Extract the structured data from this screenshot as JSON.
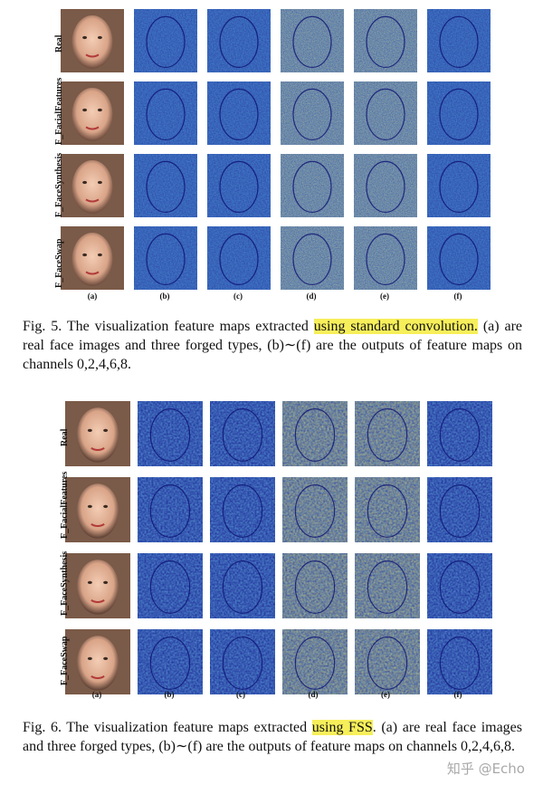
{
  "figures": [
    {
      "id": "fig5",
      "row_labels": [
        "Real",
        "F_FacialFeatures",
        "F_FaceSynthesis",
        "F_FaceSwap"
      ],
      "col_labels": [
        "(a)",
        "(b)",
        "(c)",
        "(d)",
        "(e)",
        "(f)"
      ],
      "caption": {
        "prefix": "Fig. 5.",
        "text_before": "  The visualization feature maps extracted ",
        "highlight": "using standard convolution.",
        "text_after": " (a) are real face images and three forged types, (b)∼(f) are the outputs of feature maps on channels 0,2,4,6,8."
      },
      "colors": {
        "tile_base": "#2f3fa8",
        "highlight": "#f7ef5a"
      }
    },
    {
      "id": "fig6",
      "row_labels": [
        "Real",
        "F_FacialFeatures",
        "F_FaceSynthesis",
        "F_FaceSwap"
      ],
      "col_labels": [
        "(a)",
        "(b)",
        "(c)",
        "(d)",
        "(e)",
        "(f)"
      ],
      "caption": {
        "prefix": "Fig. 6.",
        "text_before": "  The visualization feature maps extracted ",
        "highlight": "using FSS",
        "text_after": ". (a) are real face images and three forged types, (b)∼(f) are the outputs of feature maps on channels 0,2,4,6,8."
      },
      "colors": {
        "tile_base": "#1a1f96",
        "highlight": "#f7ef5a"
      }
    }
  ],
  "watermark": "知乎 @Echo"
}
